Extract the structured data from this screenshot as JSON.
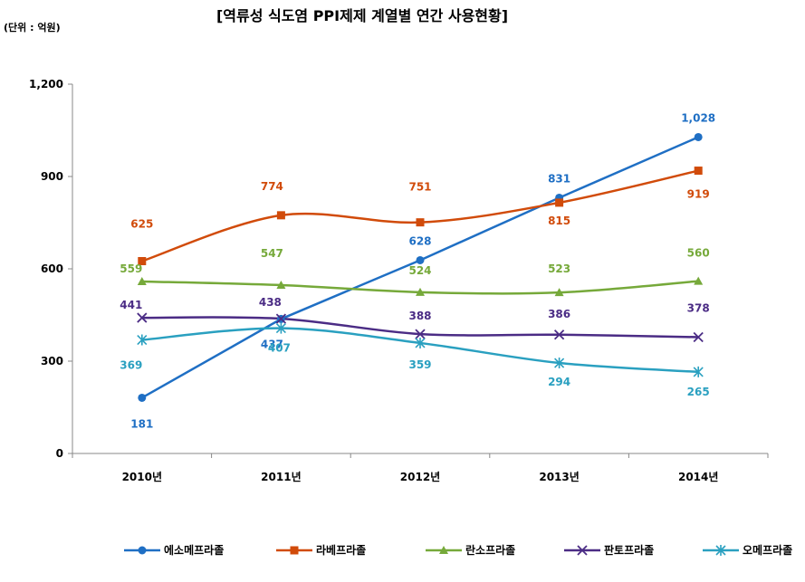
{
  "chart_data": {
    "type": "line",
    "title": "[역류성 식도염 PPI제제 계열별 연간 사용현황]",
    "unit_note": "(단위 : 억원)",
    "categories": [
      "2010년",
      "2011년",
      "2012년",
      "2013년",
      "2014년"
    ],
    "ylim": [
      0,
      1200
    ],
    "yticks": [
      "0",
      "300",
      "600",
      "900",
      "1,200"
    ],
    "grid": false,
    "legend_position": "bottom",
    "series": [
      {
        "name": "에소메프라졸",
        "color": "#1F6FC4",
        "marker": "circle",
        "values": [
          181,
          437,
          628,
          831,
          1028
        ],
        "labels": [
          "181",
          "437",
          "628",
          "831",
          "1,028"
        ]
      },
      {
        "name": "라베프라졸",
        "color": "#D14B0A",
        "marker": "square",
        "values": [
          625,
          774,
          751,
          815,
          919
        ],
        "labels": [
          "625",
          "774",
          "751",
          "815",
          "919"
        ]
      },
      {
        "name": "란소프라졸",
        "color": "#76A93A",
        "marker": "triangle",
        "values": [
          559,
          547,
          524,
          523,
          560
        ],
        "labels": [
          "559",
          "547",
          "524",
          "523",
          "560"
        ]
      },
      {
        "name": "판토프라졸",
        "color": "#4B2C85",
        "marker": "x",
        "values": [
          441,
          438,
          388,
          386,
          378
        ],
        "labels": [
          "441",
          "438",
          "388",
          "386",
          "378"
        ]
      },
      {
        "name": "오메프라졸",
        "color": "#2AA0C0",
        "marker": "star",
        "values": [
          369,
          407,
          359,
          294,
          265
        ],
        "labels": [
          "369",
          "407",
          "359",
          "294",
          "265"
        ]
      }
    ]
  }
}
